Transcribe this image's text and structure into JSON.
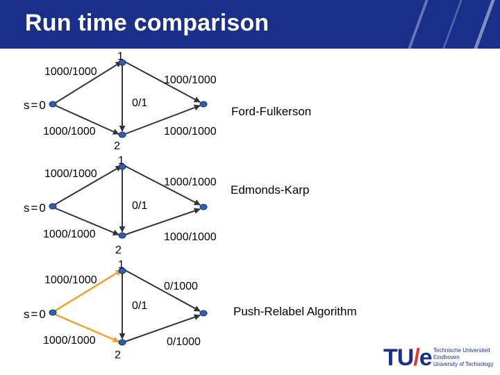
{
  "title": "Run time comparison",
  "colors": {
    "header_bg": "#1a2f8a",
    "node_fill": "#2e5fae",
    "edge_default": "#333333",
    "edge_highlight": "#f0a030",
    "logo_red": "#e8322b"
  },
  "diagrams": [
    {
      "algorithm": "Ford-Fulkerson",
      "source_label": "s=0",
      "top_node_label": "1",
      "bottom_node_label": "2",
      "edges": {
        "s_to_1": "1000/1000",
        "one_to_t": "1000/1000",
        "one_to_2": "0/1",
        "s_to_2": "1000/1000",
        "two_to_t": "1000/1000"
      },
      "highlighted_edges": []
    },
    {
      "algorithm": "Edmonds-Karp",
      "source_label": "s=0",
      "top_node_label": "1",
      "bottom_node_label": "2",
      "edges": {
        "s_to_1": "1000/1000",
        "one_to_t": "1000/1000",
        "one_to_2": "0/1",
        "s_to_2": "1000/1000",
        "two_to_t": "1000/1000"
      },
      "highlighted_edges": []
    },
    {
      "algorithm": "Push-Relabel Algorithm",
      "source_label": "s=0",
      "top_node_label": "1",
      "bottom_node_label": "2",
      "edges": {
        "s_to_1": "1000/1000",
        "one_to_t": "0/1000",
        "one_to_2": "0/1",
        "s_to_2": "1000/1000",
        "two_to_t": "0/1000"
      },
      "highlighted_edges": [
        "s_to_1",
        "s_to_2"
      ]
    }
  ],
  "logo": {
    "text_tu": "TU",
    "text_slash": "/",
    "text_e": "e",
    "line1": "Technische Universiteit",
    "line2": "Eindhoven",
    "line3": "University of Technology"
  }
}
